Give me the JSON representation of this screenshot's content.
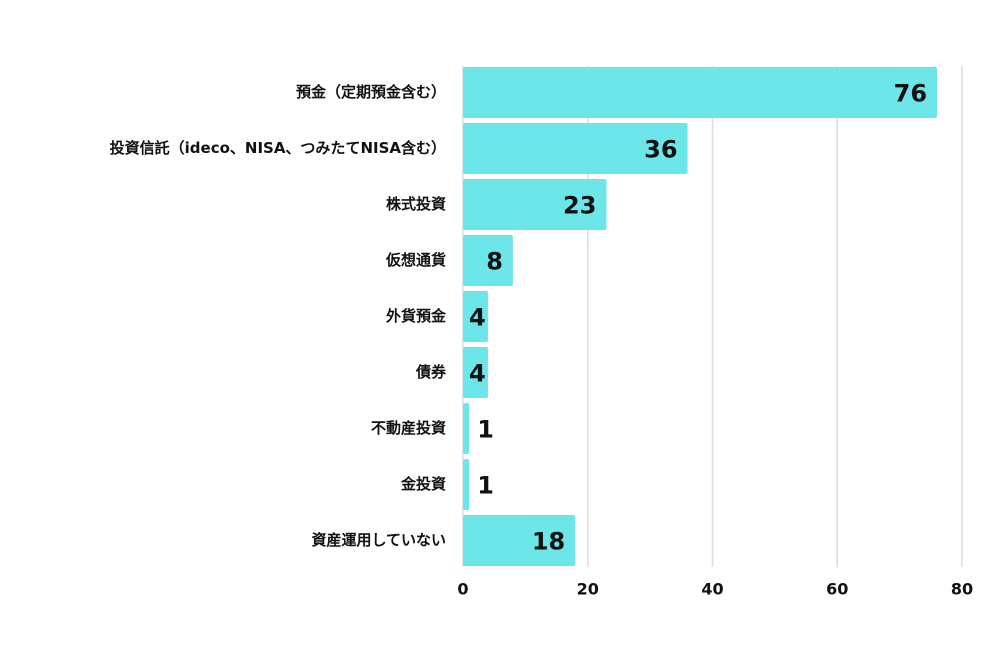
{
  "chart_data": {
    "type": "bar",
    "orientation": "horizontal",
    "categories": [
      "預金（定期預金含む）",
      "投資信託（ideco、NISA、つみたてNISA含む）",
      "株式投資",
      "仮想通貨",
      "外貨預金",
      "債券",
      "不動産投資",
      "金投資",
      "資産運用していない"
    ],
    "values": [
      76,
      36,
      23,
      8,
      4,
      4,
      1,
      1,
      18
    ],
    "xlim": [
      0,
      80
    ],
    "xticks": [
      0,
      20,
      40,
      60,
      80
    ],
    "grid": true,
    "title": "",
    "xlabel": "",
    "ylabel": "",
    "bar_color": "#6ce6e9",
    "grid_color": "#dddddd",
    "text_color": "#111111"
  }
}
